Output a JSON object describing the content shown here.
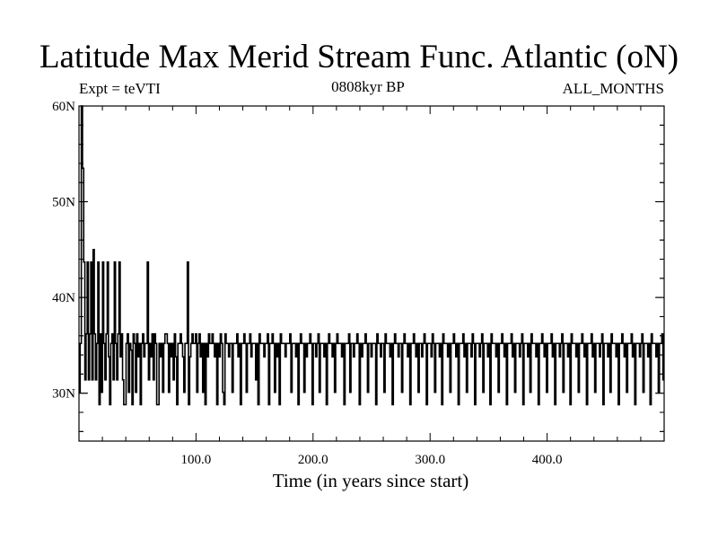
{
  "header": {
    "title": "Latitude Max Merid Stream Func. Atlantic (oN)",
    "expt": "Expt = teVTI",
    "subtitle": "0808kyr BP",
    "months": "ALL_MONTHS"
  },
  "chart_data": {
    "type": "line",
    "title": "Latitude Max Merid Stream Func. Atlantic (oN)",
    "xlabel": "Time (in years since start)",
    "ylabel": "",
    "xlim": [
      0,
      500
    ],
    "ylim": [
      25,
      60
    ],
    "xticks": [
      100,
      200,
      300,
      400
    ],
    "xtick_labels": [
      "100.0",
      "200.0",
      "300.0",
      "400.0"
    ],
    "yticks": [
      30,
      40,
      50,
      60
    ],
    "ytick_labels": [
      "30N",
      "40N",
      "50N",
      "60N"
    ],
    "grid": false,
    "series": [
      {
        "values": [
          30.1,
          35.2,
          60.5,
          53.5,
          43.7,
          31.4,
          36.2,
          43.7,
          31.4,
          36.2,
          43.7,
          31.4,
          45.0,
          36.2,
          31.4,
          35.2,
          43.7,
          28.8,
          36.2,
          30.1,
          43.7,
          35.2,
          31.4,
          36.2,
          43.7,
          33.8,
          28.8,
          35.2,
          36.2,
          31.4,
          43.7,
          35.2,
          31.4,
          36.2,
          43.7,
          33.8,
          36.2,
          31.4,
          28.8,
          28.8,
          35.2,
          36.2,
          30.1,
          35.2,
          34.5,
          28.8,
          36.2,
          35.2,
          30.1,
          36.2,
          33.8,
          35.2,
          28.8,
          35.2,
          36.2,
          33.8,
          35.2,
          35.2,
          43.7,
          31.4,
          35.2,
          33.8,
          36.2,
          31.4,
          36.2,
          35.2,
          28.8,
          28.8,
          35.2,
          33.8,
          35.2,
          30.1,
          35.2,
          36.2,
          36.2,
          35.2,
          30.1,
          35.2,
          33.8,
          35.2,
          31.4,
          36.2,
          33.8,
          28.8,
          35.2,
          35.2,
          36.2,
          35.2,
          33.8,
          30.1,
          35.2,
          35.2,
          43.7,
          28.8,
          33.8,
          35.2,
          36.2,
          35.2,
          35.2,
          36.2,
          30.1,
          35.2,
          36.2,
          33.8,
          35.2,
          30.1,
          35.2,
          28.8,
          35.2,
          33.8,
          36.2,
          35.2,
          35.2,
          36.2,
          35.2,
          33.8,
          35.2,
          28.8,
          35.2,
          33.8,
          36.2,
          35.2,
          30.1,
          28.8,
          36.2,
          35.2,
          35.2,
          33.8,
          35.2,
          35.2,
          30.1,
          35.2,
          35.2,
          35.2,
          36.2,
          33.8,
          35.2,
          28.8,
          35.2,
          35.2,
          36.2,
          35.2,
          30.1,
          35.2,
          35.2,
          36.2,
          33.8,
          35.2,
          35.2,
          35.2,
          31.4,
          35.2,
          28.8,
          36.2,
          35.2,
          35.2,
          35.2,
          33.8,
          35.2,
          35.2,
          36.2,
          28.8,
          35.2,
          35.2,
          36.2,
          35.2,
          30.1,
          35.2,
          33.8,
          35.2,
          28.8,
          36.2,
          35.2,
          35.2,
          35.2,
          33.8,
          35.2,
          35.2,
          35.2,
          36.2,
          30.1,
          35.2,
          35.2,
          35.2,
          33.8,
          35.2,
          28.8,
          35.2,
          36.2,
          35.2,
          35.2,
          30.1,
          35.2,
          33.8,
          35.2,
          35.2,
          36.2,
          35.2,
          28.8,
          35.2,
          35.2,
          33.8,
          35.2,
          36.2,
          30.1,
          35.2,
          35.2,
          35.2,
          33.8,
          35.2,
          28.8,
          35.2,
          36.2,
          35.2,
          35.2,
          33.8,
          35.2,
          30.1,
          35.2,
          36.2,
          35.2,
          35.2,
          35.2,
          33.8,
          35.2,
          28.8,
          35.2,
          35.2,
          35.2,
          36.2,
          30.1,
          35.2,
          35.2,
          33.8,
          35.2,
          35.2,
          36.2,
          35.2,
          28.8,
          35.2,
          33.8,
          35.2,
          35.2,
          36.2,
          35.2,
          30.1,
          35.2,
          35.2,
          33.8,
          35.2,
          35.2,
          35.2,
          28.8,
          36.2,
          35.2,
          35.2,
          33.8,
          35.2,
          35.2,
          30.1,
          36.2,
          35.2,
          35.2,
          35.2,
          33.8,
          35.2,
          28.8,
          35.2,
          36.2,
          35.2,
          35.2,
          33.8,
          35.2,
          35.2,
          30.1,
          35.2,
          36.2,
          35.2,
          35.2,
          33.8,
          35.2,
          28.8,
          35.2,
          35.2,
          36.2,
          35.2,
          33.8,
          35.2,
          30.1,
          35.2,
          35.2,
          33.8,
          35.2,
          36.2,
          35.2,
          28.8,
          35.2,
          35.2,
          35.2,
          33.8,
          36.2,
          35.2,
          30.1,
          35.2,
          35.2,
          35.2,
          33.8,
          35.2,
          28.8,
          36.2,
          35.2,
          35.2,
          35.2,
          33.8,
          35.2,
          30.1,
          35.2,
          35.2,
          36.2,
          35.2,
          33.8,
          35.2,
          28.8,
          35.2,
          35.2,
          35.2,
          36.2,
          33.8,
          35.2,
          30.1,
          35.2,
          35.2,
          35.2,
          33.8,
          36.2,
          35.2,
          28.8,
          35.2,
          35.2,
          35.2,
          33.8,
          35.2,
          36.2,
          30.1,
          35.2,
          35.2,
          35.2,
          33.8,
          35.2,
          28.8,
          36.2,
          35.2,
          35.2,
          35.2,
          33.8,
          35.2,
          30.1,
          35.2,
          35.2,
          36.2,
          35.2,
          33.8,
          35.2,
          28.8,
          35.2,
          35.2,
          35.2,
          36.2,
          33.8,
          35.2,
          30.1,
          35.2,
          35.2,
          35.2,
          33.8,
          35.2,
          36.2,
          28.8,
          35.2,
          35.2,
          35.2,
          33.8,
          35.2,
          30.1,
          36.2,
          35.2,
          35.2,
          35.2,
          33.8,
          35.2,
          28.8,
          35.2,
          35.2,
          36.2,
          35.2,
          33.8,
          35.2,
          30.1,
          35.2,
          35.2,
          35.2,
          36.2,
          33.8,
          35.2,
          28.8,
          35.2,
          35.2,
          35.2,
          33.8,
          35.2,
          36.2,
          30.1,
          35.2,
          35.2,
          35.2,
          33.8,
          35.2,
          28.8,
          36.2,
          35.2,
          35.2,
          35.2,
          33.8,
          35.2,
          30.1,
          35.2,
          35.2,
          36.2,
          35.2,
          33.8,
          35.2,
          28.8,
          35.2,
          35.2,
          35.2,
          36.2,
          33.8,
          35.2,
          30.1,
          35.2,
          35.2,
          35.2,
          33.8,
          35.2,
          36.2,
          28.8,
          35.2,
          35.2,
          35.2,
          33.8,
          35.2,
          30.1,
          36.2,
          35.2,
          35.2,
          35.2,
          33.8,
          35.2,
          28.8,
          35.2,
          35.2,
          36.2,
          35.2,
          33.8,
          35.2,
          30.1,
          35.2,
          35.2,
          35.2,
          36.2,
          33.8,
          35.2,
          28.8,
          35.2,
          35.2,
          35.2,
          33.8,
          35.2,
          36.2,
          30.1,
          35.2,
          35.2,
          35.2,
          33.8,
          35.2,
          28.8,
          36.2,
          35.2,
          35.2,
          35.2,
          33.8,
          35.2,
          30.1,
          35.2,
          35.2,
          36.2,
          31.4
        ]
      }
    ]
  }
}
